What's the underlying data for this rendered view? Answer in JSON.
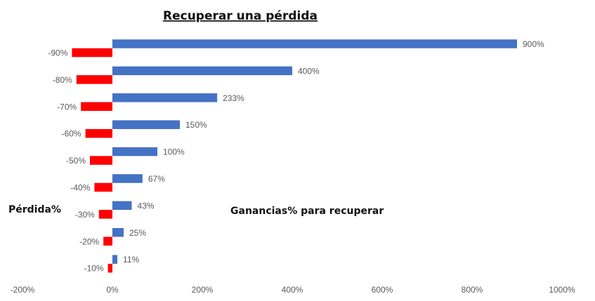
{
  "chart_data": {
    "type": "bar",
    "orientation": "horizontal",
    "title": "Recuperar una pérdida",
    "annotations": {
      "left": "Pérdida%",
      "center": "Ganancias% para recuperar"
    },
    "categories": [
      "-90%",
      "-80%",
      "-70%",
      "-60%",
      "-50%",
      "-40%",
      "-30%",
      "-20%",
      "-10%"
    ],
    "series": [
      {
        "values": [
          -90,
          -80,
          -70,
          -60,
          -50,
          -40,
          -30,
          -20,
          -10
        ],
        "color": "#ff0000"
      },
      {
        "values": [
          900,
          400,
          233,
          150,
          100,
          67,
          43,
          25,
          11
        ],
        "data_labels": [
          "900%",
          "400%",
          "233%",
          "150%",
          "100%",
          "67%",
          "43%",
          "25%",
          "11%"
        ],
        "color": "#4472c4"
      }
    ],
    "xlim": [
      -200,
      1000
    ],
    "xticks": [
      -200,
      0,
      200,
      400,
      600,
      800,
      1000
    ],
    "xtick_labels": [
      "-200%",
      "0%",
      "200%",
      "400%",
      "600%",
      "800%",
      "1000%"
    ],
    "grid": false,
    "legend": "none"
  }
}
